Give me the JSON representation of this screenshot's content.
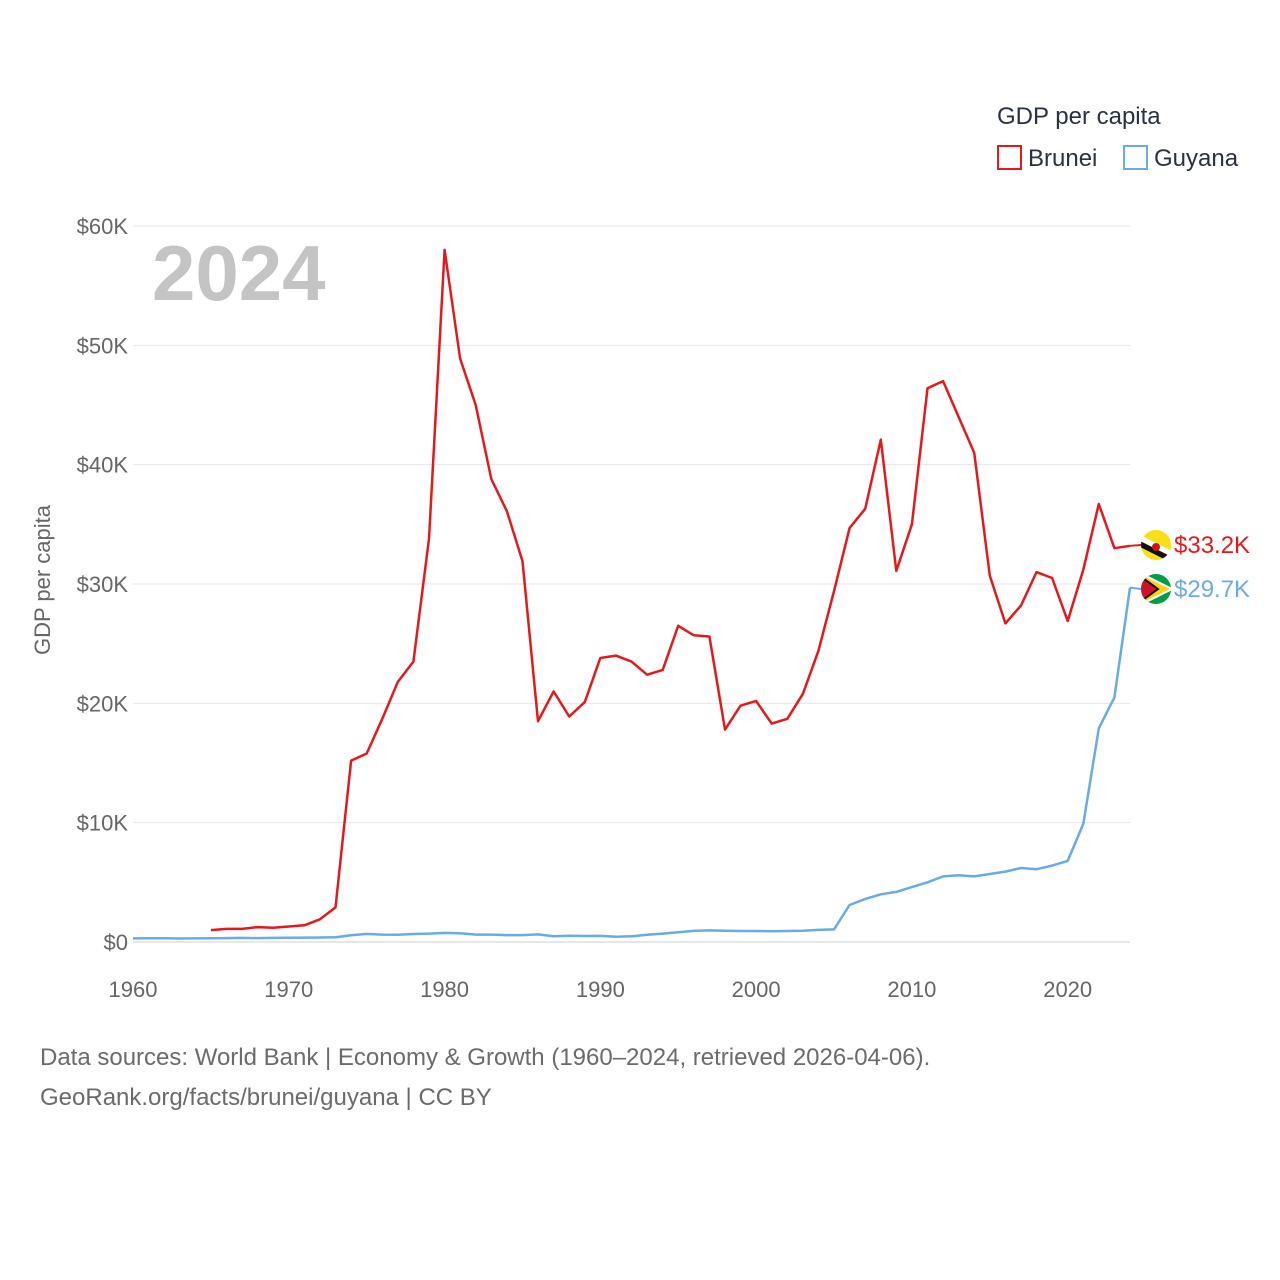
{
  "chart_data": {
    "type": "line",
    "title": "",
    "legend_title": "GDP per capita",
    "legend_position": "top-right",
    "ylabel": "GDP per capita",
    "xlabel": "",
    "current_year_label": "2024",
    "xlim": [
      1960,
      2024
    ],
    "ylim": [
      0,
      60000
    ],
    "x_ticks": [
      1960,
      1970,
      1980,
      1990,
      2000,
      2010,
      2020
    ],
    "x_tick_labels": [
      "1960",
      "1970",
      "1980",
      "1990",
      "2000",
      "2010",
      "2020"
    ],
    "y_ticks": [
      0,
      10000,
      20000,
      30000,
      40000,
      50000,
      60000
    ],
    "y_tick_labels": [
      "$0",
      "$10K",
      "$20K",
      "$30K",
      "$40K",
      "$50K",
      "$60K"
    ],
    "grid": true,
    "series": [
      {
        "name": "Brunei",
        "color": "#e31a1c",
        "end_label": "$33.2K",
        "flag_icon": "brunei-flag-icon",
        "x": [
          1965,
          1966,
          1967,
          1968,
          1969,
          1970,
          1971,
          1972,
          1973,
          1974,
          1975,
          1976,
          1977,
          1978,
          1979,
          1980,
          1981,
          1982,
          1983,
          1984,
          1985,
          1986,
          1987,
          1988,
          1989,
          1990,
          1991,
          1992,
          1993,
          1994,
          1995,
          1996,
          1997,
          1998,
          1999,
          2000,
          2001,
          2002,
          2003,
          2004,
          2005,
          2006,
          2007,
          2008,
          2009,
          2010,
          2011,
          2012,
          2013,
          2014,
          2015,
          2016,
          2017,
          2018,
          2019,
          2020,
          2021,
          2022,
          2023,
          2024
        ],
        "values": [
          1000,
          1100,
          1100,
          1250,
          1200,
          1300,
          1400,
          1900,
          2900,
          15200,
          15800,
          18700,
          21800,
          23500,
          33800,
          58000,
          48900,
          45000,
          38800,
          36100,
          31900,
          18500,
          21000,
          18900,
          20100,
          23800,
          24000,
          23500,
          22400,
          22800,
          26500,
          25700,
          25600,
          17800,
          19800,
          20200,
          18300,
          18700,
          20800,
          24400,
          29400,
          34700,
          36300,
          42100,
          31100,
          35000,
          46400,
          47000,
          44000,
          41000,
          30700,
          26700,
          28200,
          31000,
          30500,
          26900,
          31200,
          36700,
          33000,
          33200
        ]
      },
      {
        "name": "Guyana",
        "color": "#6aaae6",
        "end_label": "$29.7K",
        "flag_icon": "guyana-flag-icon",
        "x": [
          1960,
          1961,
          1962,
          1963,
          1964,
          1965,
          1966,
          1967,
          1968,
          1969,
          1970,
          1971,
          1972,
          1973,
          1974,
          1975,
          1976,
          1977,
          1978,
          1979,
          1980,
          1981,
          1982,
          1983,
          1984,
          1985,
          1986,
          1987,
          1988,
          1989,
          1990,
          1991,
          1992,
          1993,
          1994,
          1995,
          1996,
          1997,
          1998,
          1999,
          2000,
          2001,
          2002,
          2003,
          2004,
          2005,
          2006,
          2007,
          2008,
          2009,
          2010,
          2011,
          2012,
          2013,
          2014,
          2015,
          2016,
          2017,
          2018,
          2019,
          2020,
          2021,
          2022,
          2023,
          2024
        ],
        "values": [
          300,
          320,
          320,
          290,
          300,
          310,
          330,
          340,
          330,
          340,
          360,
          370,
          380,
          400,
          560,
          680,
          620,
          600,
          670,
          700,
          760,
          730,
          620,
          620,
          580,
          580,
          640,
          480,
          530,
          500,
          510,
          440,
          480,
          600,
          700,
          820,
          930,
          970,
          940,
          920,
          920,
          900,
          920,
          950,
          1010,
          1060,
          3100,
          3600,
          4000,
          4200,
          4600,
          5000,
          5500,
          5600,
          5500,
          5700,
          5900,
          6200,
          6100,
          6400,
          6800,
          9900,
          17900,
          20500,
          29700
        ]
      }
    ]
  },
  "footer": {
    "line1": "Data sources: World Bank | Economy & Growth (1960–2024, retrieved 2026-04-06).",
    "line2": "GeoRank.org/facts/brunei/guyana | CC BY"
  }
}
